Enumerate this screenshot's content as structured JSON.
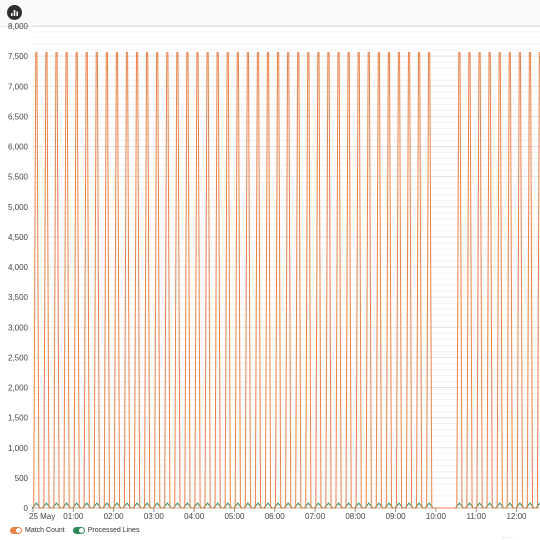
{
  "toolbar": {
    "chart_icon": "bar-chart-icon"
  },
  "chart_data": {
    "type": "line",
    "ylim": [
      0,
      8000
    ],
    "yticks": [
      0,
      500,
      1000,
      1500,
      2000,
      2500,
      3000,
      3500,
      4000,
      4500,
      5000,
      5500,
      6000,
      6500,
      7000,
      7500,
      8000
    ],
    "ytick_labels": [
      "0",
      "500",
      "1,000",
      "1,500",
      "2,000",
      "2,500",
      "3,000",
      "3,500",
      "4,000",
      "4,500",
      "5,000",
      "5,500",
      "6,000",
      "6,500",
      "7,000",
      "7,500",
      "8,000"
    ],
    "xlim": [
      "2024-05-25T00:00",
      "2024-05-25T12:35"
    ],
    "xticks": [
      "2024-05-25T00:00",
      "2024-05-25T01:00",
      "2024-05-25T02:00",
      "2024-05-25T03:00",
      "2024-05-25T04:00",
      "2024-05-25T05:00",
      "2024-05-25T06:00",
      "2024-05-25T07:00",
      "2024-05-25T08:00",
      "2024-05-25T09:00",
      "2024-05-25T10:00",
      "2024-05-25T11:00",
      "2024-05-25T12:00"
    ],
    "xtick_labels": [
      "25 May",
      "01:00",
      "02:00",
      "03:00",
      "04:00",
      "05:00",
      "06:00",
      "07:00",
      "08:00",
      "09:00",
      "10:00",
      "11:00",
      "12:00"
    ],
    "grid": true,
    "legend_position": "bottom-left",
    "series": [
      {
        "name": "Match Count",
        "color": "#e8834a",
        "pattern": "periodic-spikes",
        "period_minutes": 15,
        "first_spike": "2024-05-25T00:05",
        "last_spike_before_gap": "2024-05-25T09:50",
        "gap": [
          "2024-05-25T09:50",
          "2024-05-25T10:35"
        ],
        "resume_spike": "2024-05-25T10:35",
        "peak_value": 7560,
        "baseline_value": 0
      },
      {
        "name": "Processed Lines",
        "color": "#2e8b57",
        "pattern": "periodic-small",
        "period_minutes": 15,
        "peak_value": 80,
        "baseline_value": 0
      }
    ]
  }
}
